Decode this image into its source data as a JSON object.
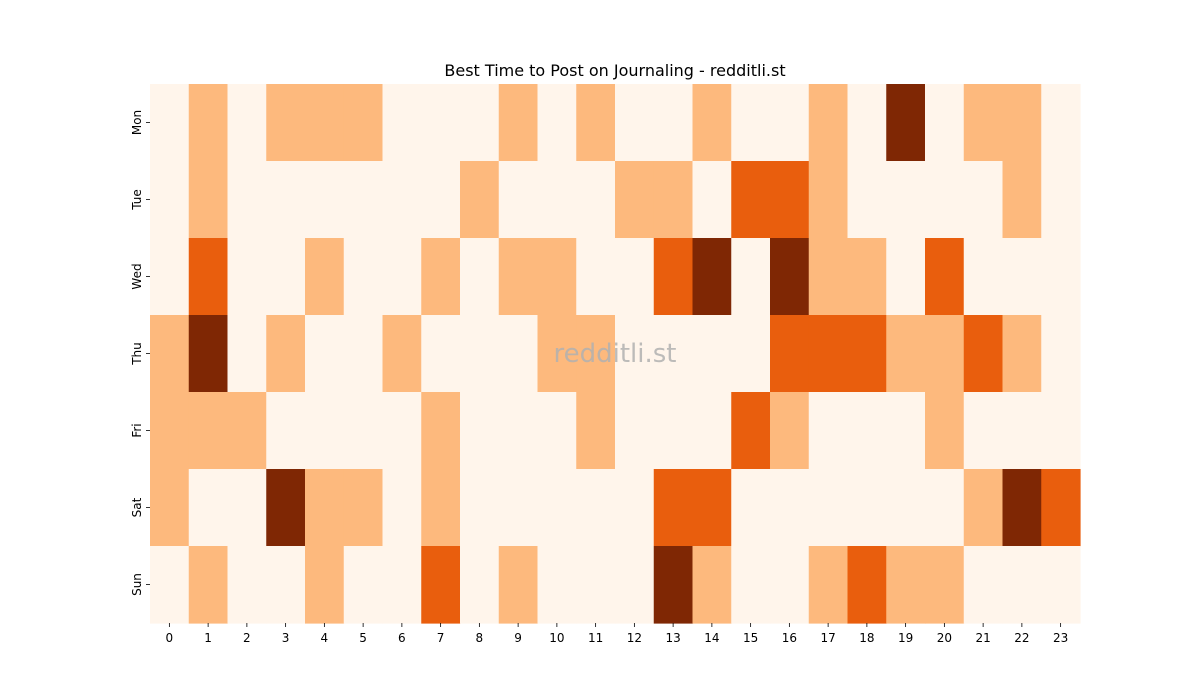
{
  "chart_data": {
    "type": "heatmap",
    "title": "Best Time to Post on Journaling - redditli.st",
    "watermark": "redditli.st",
    "xlabel": "",
    "ylabel": "",
    "x_categories": [
      "0",
      "1",
      "2",
      "3",
      "4",
      "5",
      "6",
      "7",
      "8",
      "9",
      "10",
      "11",
      "12",
      "13",
      "14",
      "15",
      "16",
      "17",
      "18",
      "19",
      "20",
      "21",
      "22",
      "23"
    ],
    "y_categories": [
      "Mon",
      "Tue",
      "Wed",
      "Thu",
      "Fri",
      "Sat",
      "Sun"
    ],
    "levels": 4,
    "colormap": [
      "#fff5eb",
      "#fdb97d",
      "#e95e0d",
      "#7f2704"
    ],
    "values": [
      [
        0,
        1,
        0,
        1,
        1,
        1,
        0,
        0,
        0,
        1,
        0,
        1,
        0,
        0,
        1,
        0,
        0,
        1,
        0,
        3,
        0,
        1,
        1,
        0
      ],
      [
        0,
        1,
        0,
        0,
        0,
        0,
        0,
        0,
        1,
        0,
        0,
        0,
        1,
        1,
        0,
        2,
        2,
        1,
        0,
        0,
        0,
        0,
        1,
        0
      ],
      [
        0,
        2,
        0,
        0,
        1,
        0,
        0,
        1,
        0,
        1,
        1,
        0,
        0,
        2,
        3,
        0,
        3,
        1,
        1,
        0,
        2,
        0,
        0,
        0
      ],
      [
        1,
        3,
        0,
        1,
        0,
        0,
        1,
        0,
        0,
        0,
        1,
        1,
        0,
        0,
        0,
        0,
        2,
        2,
        2,
        1,
        1,
        2,
        1,
        0
      ],
      [
        1,
        1,
        1,
        0,
        0,
        0,
        0,
        1,
        0,
        0,
        0,
        1,
        0,
        0,
        0,
        2,
        1,
        0,
        0,
        0,
        1,
        0,
        0,
        0
      ],
      [
        1,
        0,
        0,
        3,
        1,
        1,
        0,
        1,
        0,
        0,
        0,
        0,
        0,
        2,
        2,
        0,
        0,
        0,
        0,
        0,
        0,
        1,
        3,
        2
      ],
      [
        0,
        1,
        0,
        0,
        1,
        0,
        0,
        2,
        0,
        1,
        0,
        0,
        0,
        3,
        1,
        0,
        0,
        1,
        2,
        1,
        1,
        0,
        0,
        0
      ]
    ],
    "grid": false,
    "colorbar": false
  }
}
